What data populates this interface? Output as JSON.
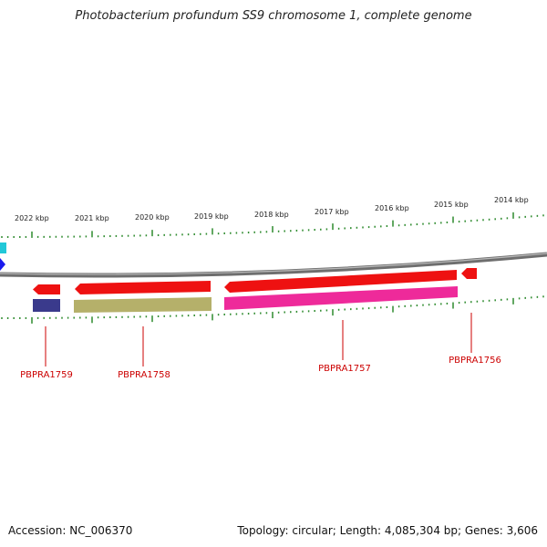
{
  "title": "Photobacterium profundum SS9 chromosome 1, complete genome",
  "footer": {
    "accession": "Accession: NC_006370",
    "topology": "Topology: circular; Length: 4,085,304 bp; Genes: 3,606"
  },
  "scale": {
    "unit": "kbp",
    "ticks": [
      "2022 kbp",
      "2021 kbp",
      "2020 kbp",
      "2019 kbp",
      "2018 kbp",
      "2017 kbp",
      "2016 kbp",
      "2015 kbp",
      "2014 kbp"
    ]
  },
  "genes": [
    {
      "id": "PBPRA1759",
      "label": "PBPRA1759",
      "strand": "reverse",
      "cds_color": "#3a3a8c"
    },
    {
      "id": "PBPRA1758",
      "label": "PBPRA1758",
      "strand": "reverse",
      "cds_color": "#b5b06a"
    },
    {
      "id": "PBPRA1757",
      "label": "PBPRA1757",
      "strand": "reverse",
      "cds_color": "#ee2a9a"
    },
    {
      "id": "PBPRA1756",
      "label": "PBPRA1756",
      "strand": "reverse",
      "cds_color": null
    }
  ],
  "colors": {
    "gene_feature": "#ee1111",
    "backbone": "#8a8a8a",
    "tick": "#2e8b2e",
    "label": "#cc0000"
  }
}
